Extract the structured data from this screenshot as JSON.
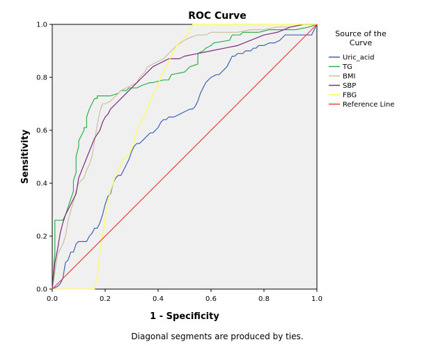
{
  "chart_data": {
    "type": "line",
    "title": "ROC Curve",
    "xlabel": "1 - Specificity",
    "ylabel": "Sensitivity",
    "xlim": [
      0,
      1
    ],
    "ylim": [
      0,
      1
    ],
    "x_ticks": [
      0.0,
      0.2,
      0.4,
      0.6,
      0.8,
      1.0
    ],
    "y_ticks": [
      0.0,
      0.2,
      0.4,
      0.6,
      0.8,
      1.0
    ],
    "x_tick_labels": [
      "0.0",
      "0.2",
      "0.4",
      "0.6",
      "0.8",
      "1.0"
    ],
    "y_tick_labels": [
      "0.0",
      "0.2",
      "0.4",
      "0.6",
      "0.8",
      "1.0"
    ],
    "grid": false,
    "legend_title": "Source of the Curve",
    "legend_position": "right",
    "footnote": "Diagonal segments are produced by ties.",
    "plot_background": "#f0f0f0",
    "series": [
      {
        "name": "Uric_acid",
        "color": "#3f60b6",
        "x": [
          0,
          0.02,
          0.03,
          0.04,
          0.05,
          0.06,
          0.07,
          0.08,
          0.09,
          0.1,
          0.12,
          0.13,
          0.14,
          0.15,
          0.16,
          0.17,
          0.18,
          0.19,
          0.2,
          0.21,
          0.22,
          0.23,
          0.24,
          0.25,
          0.26,
          0.27,
          0.28,
          0.29,
          0.3,
          0.31,
          0.32,
          0.33,
          0.34,
          0.35,
          0.37,
          0.38,
          0.39,
          0.4,
          0.41,
          0.42,
          0.43,
          0.44,
          0.45,
          0.46,
          0.48,
          0.5,
          0.52,
          0.53,
          0.54,
          0.55,
          0.56,
          0.57,
          0.58,
          0.59,
          0.6,
          0.62,
          0.63,
          0.64,
          0.66,
          0.67,
          0.68,
          0.69,
          0.7,
          0.71,
          0.72,
          0.73,
          0.74,
          0.75,
          0.76,
          0.77,
          0.78,
          0.8,
          0.82,
          0.83,
          0.84,
          0.86,
          0.87,
          0.88,
          0.9,
          0.91,
          0.93,
          0.95,
          0.97,
          0.98,
          1.0
        ],
        "y": [
          0,
          0.01,
          0.02,
          0.04,
          0.1,
          0.11,
          0.14,
          0.14,
          0.17,
          0.18,
          0.18,
          0.18,
          0.2,
          0.21,
          0.23,
          0.23,
          0.25,
          0.28,
          0.32,
          0.35,
          0.36,
          0.4,
          0.42,
          0.43,
          0.43,
          0.45,
          0.47,
          0.49,
          0.52,
          0.54,
          0.55,
          0.55,
          0.56,
          0.57,
          0.59,
          0.59,
          0.6,
          0.61,
          0.63,
          0.64,
          0.64,
          0.65,
          0.65,
          0.65,
          0.66,
          0.67,
          0.68,
          0.68,
          0.69,
          0.71,
          0.74,
          0.76,
          0.78,
          0.79,
          0.8,
          0.81,
          0.81,
          0.82,
          0.84,
          0.86,
          0.88,
          0.88,
          0.89,
          0.89,
          0.89,
          0.9,
          0.9,
          0.9,
          0.91,
          0.91,
          0.92,
          0.92,
          0.93,
          0.93,
          0.93,
          0.94,
          0.95,
          0.96,
          0.96,
          0.96,
          0.96,
          0.96,
          0.96,
          0.96,
          1.0
        ]
      },
      {
        "name": "TG",
        "color": "#2db04b",
        "x": [
          0,
          0.01,
          0.01,
          0.04,
          0.05,
          0.06,
          0.07,
          0.08,
          0.08,
          0.09,
          0.09,
          0.1,
          0.1,
          0.11,
          0.12,
          0.12,
          0.13,
          0.13,
          0.14,
          0.15,
          0.16,
          0.16,
          0.17,
          0.17,
          0.18,
          0.2,
          0.21,
          0.22,
          0.25,
          0.26,
          0.28,
          0.29,
          0.32,
          0.34,
          0.37,
          0.38,
          0.42,
          0.44,
          0.45,
          0.5,
          0.52,
          0.55,
          0.55,
          0.57,
          0.58,
          0.6,
          0.61,
          0.67,
          0.68,
          0.71,
          0.72,
          0.78,
          0.82,
          0.92,
          0.97,
          1.0
        ],
        "y": [
          0,
          0.14,
          0.26,
          0.26,
          0.28,
          0.31,
          0.34,
          0.37,
          0.41,
          0.44,
          0.5,
          0.54,
          0.56,
          0.58,
          0.6,
          0.61,
          0.61,
          0.65,
          0.68,
          0.7,
          0.72,
          0.72,
          0.72,
          0.73,
          0.73,
          0.73,
          0.73,
          0.73,
          0.74,
          0.75,
          0.75,
          0.76,
          0.76,
          0.77,
          0.78,
          0.78,
          0.79,
          0.79,
          0.81,
          0.82,
          0.84,
          0.85,
          0.89,
          0.9,
          0.91,
          0.92,
          0.93,
          0.94,
          0.96,
          0.96,
          0.97,
          0.97,
          0.98,
          0.98,
          0.99,
          1.0
        ]
      },
      {
        "name": "BMI",
        "color": "#cdbf9c",
        "x": [
          0,
          0.02,
          0.04,
          0.05,
          0.06,
          0.08,
          0.09,
          0.1,
          0.11,
          0.12,
          0.13,
          0.14,
          0.15,
          0.16,
          0.17,
          0.18,
          0.19,
          0.2,
          0.22,
          0.24,
          0.26,
          0.28,
          0.3,
          0.32,
          0.33,
          0.35,
          0.36,
          0.38,
          0.4,
          0.42,
          0.43,
          0.45,
          0.47,
          0.5,
          0.52,
          0.55,
          0.58,
          0.6,
          0.62,
          0.65,
          0.7,
          0.75,
          0.8,
          0.85,
          0.9,
          0.95,
          1.0
        ],
        "y": [
          0,
          0.13,
          0.17,
          0.2,
          0.26,
          0.33,
          0.37,
          0.4,
          0.41,
          0.42,
          0.45,
          0.47,
          0.5,
          0.56,
          0.62,
          0.67,
          0.7,
          0.7,
          0.71,
          0.73,
          0.75,
          0.76,
          0.77,
          0.78,
          0.8,
          0.82,
          0.84,
          0.85,
          0.86,
          0.87,
          0.88,
          0.9,
          0.92,
          0.94,
          0.95,
          0.96,
          0.96,
          0.97,
          0.97,
          0.97,
          0.97,
          0.98,
          0.98,
          0.99,
          0.99,
          1.0,
          1.0
        ]
      },
      {
        "name": "SBP",
        "color": "#7b2a7d",
        "x": [
          0,
          0.01,
          0.02,
          0.03,
          0.04,
          0.05,
          0.06,
          0.07,
          0.08,
          0.09,
          0.1,
          0.12,
          0.14,
          0.16,
          0.18,
          0.19,
          0.2,
          0.21,
          0.22,
          0.23,
          0.24,
          0.26,
          0.28,
          0.3,
          0.32,
          0.34,
          0.36,
          0.38,
          0.4,
          0.42,
          0.44,
          0.46,
          0.48,
          0.5,
          0.55,
          0.6,
          0.65,
          0.7,
          0.75,
          0.8,
          0.85,
          0.9,
          0.95,
          1.0
        ],
        "y": [
          0,
          0.1,
          0.15,
          0.21,
          0.25,
          0.28,
          0.3,
          0.32,
          0.34,
          0.36,
          0.42,
          0.47,
          0.52,
          0.57,
          0.6,
          0.63,
          0.65,
          0.66,
          0.68,
          0.69,
          0.7,
          0.72,
          0.74,
          0.76,
          0.78,
          0.8,
          0.82,
          0.84,
          0.85,
          0.86,
          0.87,
          0.87,
          0.87,
          0.88,
          0.89,
          0.9,
          0.91,
          0.92,
          0.94,
          0.96,
          0.97,
          0.99,
          1.0,
          1.0
        ]
      },
      {
        "name": "FBG",
        "color": "#ffff4f",
        "x": [
          0,
          0.08,
          0.16,
          0.17,
          0.18,
          0.19,
          0.2,
          0.21,
          0.22,
          0.23,
          0.24,
          0.25,
          0.26,
          0.27,
          0.28,
          0.29,
          0.3,
          0.31,
          0.32,
          0.33,
          0.34,
          0.35,
          0.36,
          0.37,
          0.38,
          0.39,
          0.4,
          0.41,
          0.42,
          0.43,
          0.44,
          0.45,
          0.46,
          0.47,
          0.48,
          0.49,
          0.5,
          0.51,
          0.52,
          0.53,
          0.54,
          0.55,
          0.6,
          0.7,
          0.8,
          0.9,
          1.0
        ],
        "y": [
          0,
          0,
          0,
          0.05,
          0.14,
          0.2,
          0.27,
          0.33,
          0.37,
          0.4,
          0.43,
          0.45,
          0.47,
          0.49,
          0.5,
          0.51,
          0.53,
          0.56,
          0.6,
          0.62,
          0.64,
          0.66,
          0.68,
          0.71,
          0.73,
          0.75,
          0.77,
          0.8,
          0.82,
          0.84,
          0.86,
          0.88,
          0.9,
          0.92,
          0.93,
          0.94,
          0.95,
          0.96,
          0.98,
          1.0,
          1.0,
          1.0,
          1.0,
          1.0,
          1.0,
          1.0,
          1.0
        ]
      },
      {
        "name": "Reference Line",
        "color": "#e8403a",
        "x": [
          0,
          1
        ],
        "y": [
          0,
          1
        ]
      }
    ]
  }
}
